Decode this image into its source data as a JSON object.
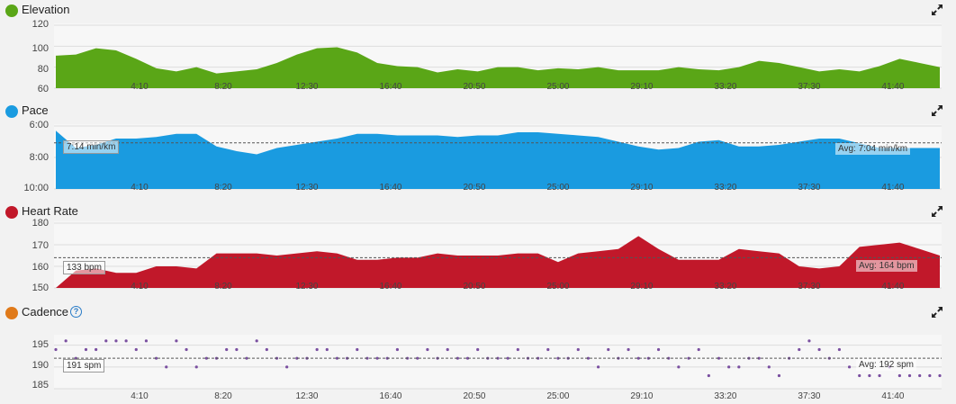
{
  "x_ticks": [
    "4:10",
    "8:20",
    "12:30",
    "16:40",
    "20:50",
    "25:00",
    "29:10",
    "33:20",
    "37:30",
    "41:40"
  ],
  "panels": {
    "elevation": {
      "title": "Elevation",
      "color": "#5aa617",
      "y_ticks": [
        "120",
        "100",
        "80",
        "60"
      ],
      "icon": "expand-icon"
    },
    "pace": {
      "title": "Pace",
      "color": "#1a9be0",
      "y_ticks": [
        "6:00",
        "8:00",
        "10:00"
      ],
      "left_tag": "7:14 min/km",
      "avg_tag": "Avg: 7:04 min/km",
      "icon": "expand-icon"
    },
    "heart_rate": {
      "title": "Heart Rate",
      "color": "#c1182a",
      "y_ticks": [
        "180",
        "170",
        "160",
        "150"
      ],
      "left_tag": "133 bpm",
      "avg_tag": "Avg: 164 bpm",
      "icon": "expand-icon"
    },
    "cadence": {
      "title": "Cadence",
      "color": "#e07a1a",
      "dot_color": "#7a4fa0",
      "y_ticks": [
        "195",
        "190",
        "185"
      ],
      "help_glyph": "?",
      "left_tag": "191 spm",
      "avg_tag": "Avg: 192 spm",
      "icon": "expand-icon"
    }
  },
  "chart_data": [
    {
      "type": "area",
      "title": "Elevation",
      "x_ticks": [
        "4:10",
        "8:20",
        "12:30",
        "16:40",
        "20:50",
        "25:00",
        "29:10",
        "33:20",
        "37:30",
        "41:40"
      ],
      "ylim": [
        60,
        120
      ],
      "x_minutes": [
        0,
        1,
        2,
        3,
        4,
        5,
        6,
        7,
        8,
        9,
        10,
        11,
        12,
        13,
        14,
        15,
        16,
        17,
        18,
        19,
        20,
        21,
        22,
        23,
        24,
        25,
        26,
        27,
        28,
        29,
        30,
        31,
        32,
        33,
        34,
        35,
        36,
        37,
        38,
        39,
        40,
        41,
        42,
        43,
        44
      ],
      "values": [
        91,
        92,
        98,
        96,
        88,
        79,
        76,
        80,
        74,
        76,
        78,
        84,
        92,
        98,
        99,
        94,
        84,
        81,
        80,
        75,
        78,
        76,
        80,
        80,
        77,
        79,
        78,
        80,
        77,
        77,
        77,
        80,
        78,
        77,
        80,
        86,
        84,
        80,
        76,
        78,
        76,
        81,
        88,
        84,
        80
      ]
    },
    {
      "type": "area",
      "title": "Pace",
      "ylim": [
        6,
        10
      ],
      "y_axis": "min/km (inverted)",
      "x_minutes": [
        0,
        1,
        2,
        3,
        4,
        5,
        6,
        7,
        8,
        9,
        10,
        11,
        12,
        13,
        14,
        15,
        16,
        17,
        18,
        19,
        20,
        21,
        22,
        23,
        24,
        25,
        26,
        27,
        28,
        29,
        30,
        31,
        32,
        33,
        34,
        35,
        36,
        37,
        38,
        39,
        40,
        41,
        42,
        43,
        44
      ],
      "values": [
        6.3,
        7.4,
        7.2,
        6.8,
        6.8,
        6.7,
        6.5,
        6.5,
        7.3,
        7.6,
        7.8,
        7.4,
        7.2,
        7.0,
        6.8,
        6.5,
        6.5,
        6.6,
        6.6,
        6.6,
        6.7,
        6.6,
        6.6,
        6.4,
        6.4,
        6.5,
        6.6,
        6.7,
        7.0,
        7.3,
        7.5,
        7.4,
        7.0,
        6.9,
        7.3,
        7.3,
        7.2,
        7.0,
        6.8,
        6.8,
        7.1,
        7.4,
        7.4,
        7.4,
        7.4
      ],
      "average": 7.07,
      "average_label": "Avg: 7:04 min/km"
    },
    {
      "type": "area",
      "title": "Heart Rate",
      "ylim": [
        150,
        180
      ],
      "x_minutes": [
        0,
        1,
        2,
        3,
        4,
        5,
        6,
        7,
        8,
        9,
        10,
        11,
        12,
        13,
        14,
        15,
        16,
        17,
        18,
        19,
        20,
        21,
        22,
        23,
        24,
        25,
        26,
        27,
        28,
        29,
        30,
        31,
        32,
        33,
        34,
        35,
        36,
        37,
        38,
        39,
        40,
        41,
        42,
        43,
        44
      ],
      "values": [
        150,
        158,
        159,
        157,
        157,
        160,
        160,
        159,
        166,
        166,
        166,
        165,
        166,
        167,
        166,
        163,
        163,
        164,
        164,
        166,
        165,
        165,
        165,
        166,
        166,
        162,
        166,
        167,
        168,
        174,
        168,
        163,
        163,
        163,
        168,
        167,
        166,
        160,
        159,
        160,
        169,
        170,
        171,
        168,
        165
      ],
      "average": 164,
      "average_label": "Avg: 164 bpm"
    },
    {
      "type": "scatter",
      "title": "Cadence",
      "ylim": [
        185,
        197
      ],
      "x_minutes": [
        0,
        0.5,
        1,
        1.5,
        2,
        2.5,
        3,
        3.5,
        4,
        4.5,
        5,
        5.5,
        6,
        6.5,
        7,
        7.5,
        8,
        8.5,
        9,
        9.5,
        10,
        10.5,
        11,
        11.5,
        12,
        12.5,
        13,
        13.5,
        14,
        14.5,
        15,
        15.5,
        16,
        16.5,
        17,
        17.5,
        18,
        18.5,
        19,
        19.5,
        20,
        20.5,
        21,
        21.5,
        22,
        22.5,
        23,
        23.5,
        24,
        24.5,
        25,
        25.5,
        26,
        26.5,
        27,
        27.5,
        28,
        28.5,
        29,
        29.5,
        30,
        30.5,
        31,
        31.5,
        32,
        32.5,
        33,
        33.5,
        34,
        34.5,
        35,
        35.5,
        36,
        36.5,
        37,
        37.5,
        38,
        38.5,
        39,
        39.5,
        40,
        40.5,
        41,
        41.5,
        42,
        42.5,
        43,
        43.5,
        44
      ],
      "values": [
        194,
        196,
        192,
        194,
        194,
        196,
        196,
        196,
        194,
        196,
        192,
        190,
        196,
        194,
        190,
        192,
        192,
        194,
        194,
        192,
        196,
        194,
        192,
        190,
        192,
        192,
        194,
        194,
        192,
        192,
        194,
        192,
        192,
        192,
        194,
        192,
        192,
        194,
        192,
        194,
        192,
        192,
        194,
        192,
        192,
        192,
        194,
        192,
        192,
        194,
        192,
        192,
        194,
        192,
        190,
        194,
        192,
        194,
        192,
        192,
        194,
        192,
        190,
        192,
        194,
        188,
        192,
        190,
        190,
        192,
        192,
        190,
        188,
        192,
        194,
        196,
        194,
        192,
        194,
        190,
        188,
        188,
        188,
        190,
        188,
        188,
        188,
        188,
        188
      ],
      "average": 192,
      "average_label": "Avg: 192 spm"
    }
  ]
}
